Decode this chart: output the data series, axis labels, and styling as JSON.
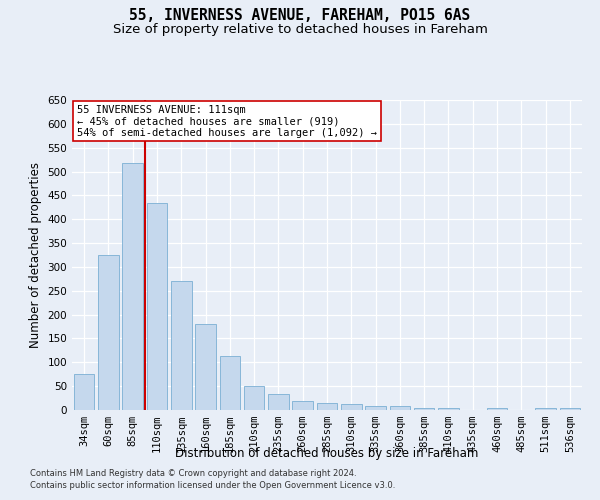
{
  "title1": "55, INVERNESS AVENUE, FAREHAM, PO15 6AS",
  "title2": "Size of property relative to detached houses in Fareham",
  "xlabel": "Distribution of detached houses by size in Fareham",
  "ylabel": "Number of detached properties",
  "categories": [
    "34sqm",
    "60sqm",
    "85sqm",
    "110sqm",
    "135sqm",
    "160sqm",
    "185sqm",
    "210sqm",
    "235sqm",
    "260sqm",
    "285sqm",
    "310sqm",
    "335sqm",
    "360sqm",
    "385sqm",
    "410sqm",
    "435sqm",
    "460sqm",
    "485sqm",
    "511sqm",
    "536sqm"
  ],
  "values": [
    75,
    325,
    518,
    435,
    270,
    180,
    113,
    50,
    34,
    18,
    15,
    12,
    9,
    8,
    5,
    5,
    0,
    5,
    0,
    5,
    5
  ],
  "bar_color": "#c5d8ed",
  "bar_edge_color": "#7bafd4",
  "vline_color": "#cc0000",
  "annotation_text": "55 INVERNESS AVENUE: 111sqm\n← 45% of detached houses are smaller (919)\n54% of semi-detached houses are larger (1,092) →",
  "annotation_box_color": "#ffffff",
  "annotation_box_edge": "#cc0000",
  "ylim": [
    0,
    650
  ],
  "yticks": [
    0,
    50,
    100,
    150,
    200,
    250,
    300,
    350,
    400,
    450,
    500,
    550,
    600,
    650
  ],
  "footer1": "Contains HM Land Registry data © Crown copyright and database right 2024.",
  "footer2": "Contains public sector information licensed under the Open Government Licence v3.0.",
  "bg_color": "#e8eef7",
  "plot_bg_color": "#e8eef7",
  "grid_color": "#ffffff",
  "title1_fontsize": 10.5,
  "title2_fontsize": 9.5,
  "axis_label_fontsize": 8.5,
  "tick_fontsize": 7.5,
  "footer_fontsize": 6.0
}
